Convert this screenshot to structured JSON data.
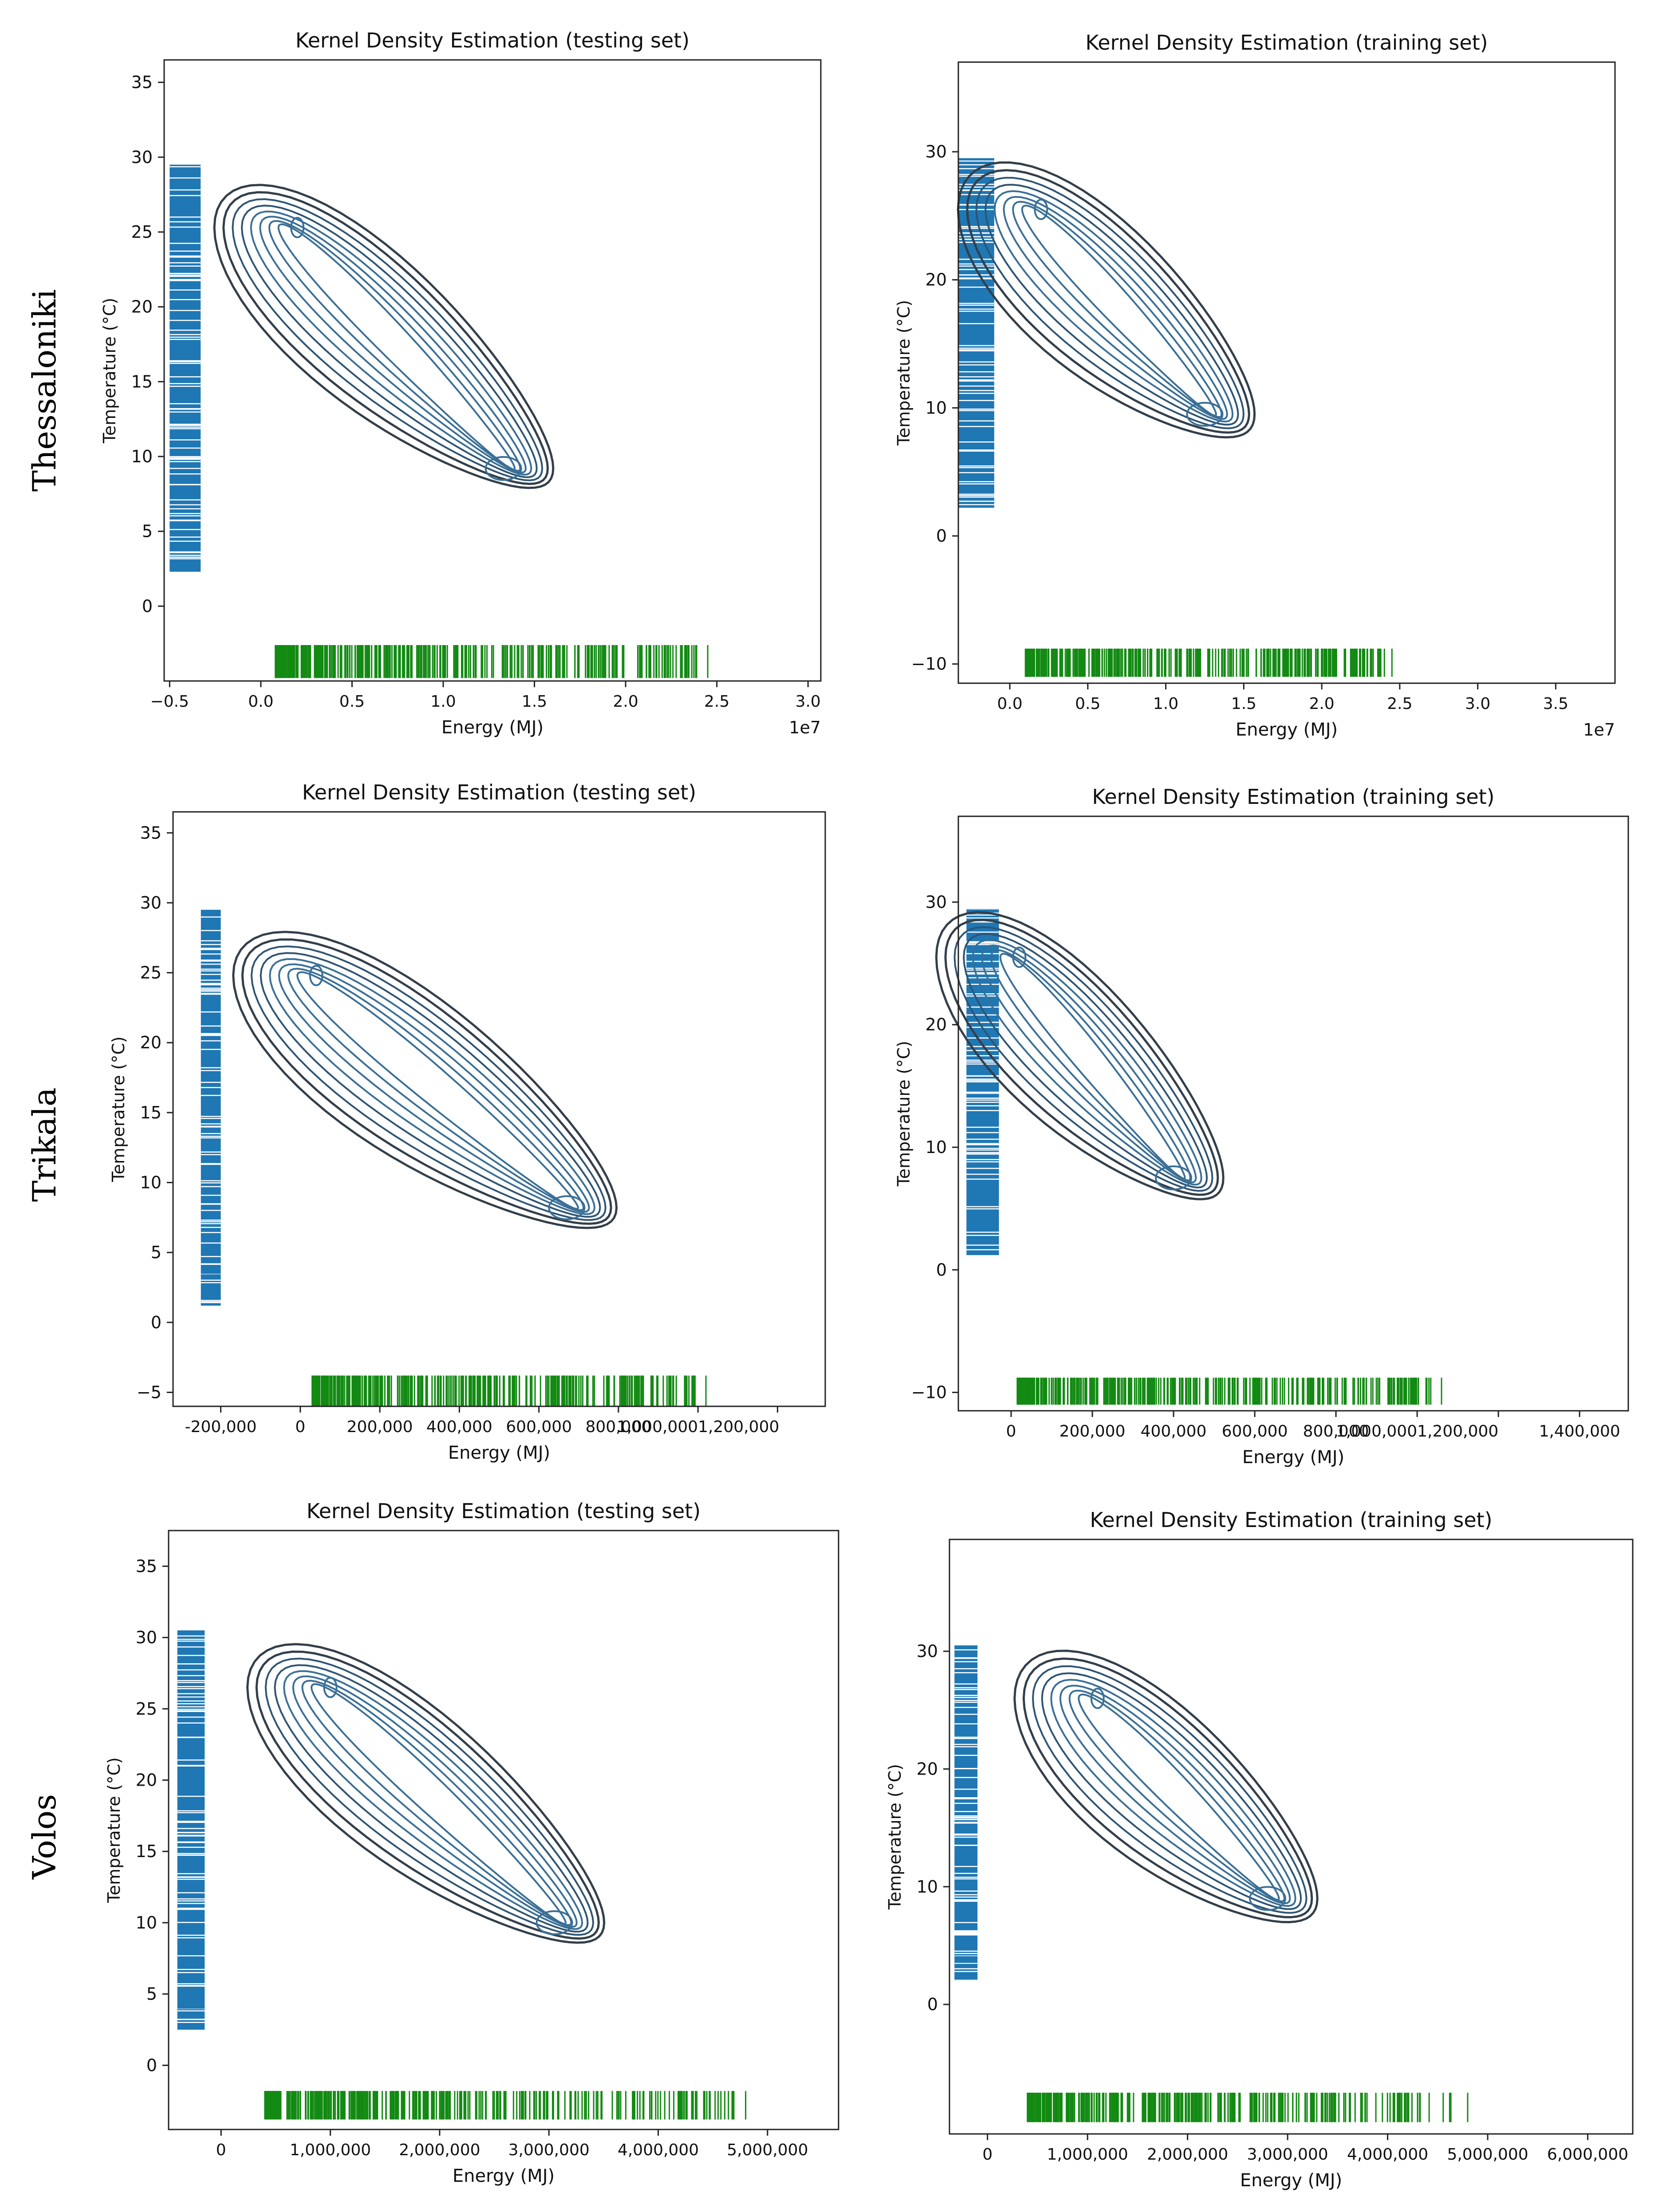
{
  "rows": [
    {
      "label": "Thessaloniki"
    },
    {
      "label": "Trikala"
    },
    {
      "label": "Volos"
    }
  ],
  "chart_data": [
    {
      "type": "kde-contour",
      "id": "thes-test",
      "title": "Kernel Density Estimation (testing set)",
      "xlabel": "Energy (MJ)",
      "ylabel": "Temperature (°C)",
      "x_offset_label": "1e7",
      "xlim": [
        -0.53,
        3.07
      ],
      "ylim": [
        -5,
        36.5
      ],
      "xticks": [
        -0.5,
        0,
        0.5,
        1.0,
        1.5,
        2.0,
        2.5,
        3.0
      ],
      "xtick_labels": [
        "−0.5",
        "0.0",
        "0.5",
        "1.0",
        "1.5",
        "2.0",
        "2.5",
        "3.0"
      ],
      "yticks": [
        0,
        5,
        10,
        15,
        20,
        25,
        30,
        35
      ],
      "ytick_labels": [
        "0",
        "5",
        "10",
        "15",
        "20",
        "25",
        "30",
        "35"
      ],
      "rug_y": {
        "x_range": [
          -0.5,
          -0.33
        ],
        "y_min": 2.3,
        "y_max": 29.5
      },
      "rug_x": {
        "y_range": [
          -4.8,
          -2.6
        ],
        "x_min": 0.08,
        "x_max": 2.45
      },
      "contour_centers": [
        [
          0.2,
          25.3
        ],
        [
          1.33,
          9.2
        ]
      ],
      "contour_levels": 8
    },
    {
      "type": "kde-contour",
      "id": "thes-train",
      "title": "Kernel Density Estimation (training set)",
      "xlabel": "Energy (MJ)",
      "ylabel": "Temperature (°C)",
      "x_offset_label": "1e7",
      "xlim": [
        -0.33,
        3.88
      ],
      "ylim": [
        -11.5,
        37
      ],
      "xticks": [
        0,
        0.5,
        1.0,
        1.5,
        2.0,
        2.5,
        3.0,
        3.5
      ],
      "xtick_labels": [
        "0.0",
        "0.5",
        "1.0",
        "1.5",
        "2.0",
        "2.5",
        "3.0",
        "3.5"
      ],
      "yticks": [
        -10,
        0,
        10,
        20,
        30
      ],
      "ytick_labels": [
        "−10",
        "0",
        "10",
        "20",
        "30"
      ],
      "rug_y": {
        "x_range": [
          -0.33,
          -0.1
        ],
        "y_min": 2.2,
        "y_max": 29.5
      },
      "rug_x": {
        "y_range": [
          -11,
          -8.8
        ],
        "x_min": 0.1,
        "x_max": 2.45
      },
      "contour_centers": [
        [
          0.2,
          25.5
        ],
        [
          1.25,
          9.5
        ]
      ],
      "contour_levels": 8
    },
    {
      "type": "kde-contour",
      "id": "trik-test",
      "title": "Kernel Density Estimation (testing set)",
      "xlabel": "Energy (MJ)",
      "ylabel": "Temperature (°C)",
      "x_offset_label": "",
      "xlim": [
        -320000,
        1320000
      ],
      "ylim": [
        -6,
        36.5
      ],
      "xticks": [
        -200000,
        0,
        200000,
        400000,
        600000,
        800000,
        1000000,
        1200000
      ],
      "xtick_labels": [
        "-200,000",
        "0",
        "200,000",
        "400,000",
        "600,000",
        "800,000",
        "1,000,0001,200,000",
        ""
      ],
      "yticks": [
        -5,
        0,
        5,
        10,
        15,
        20,
        25,
        30,
        35
      ],
      "ytick_labels": [
        "−5",
        "0",
        "5",
        "10",
        "15",
        "20",
        "25",
        "30",
        "35"
      ],
      "rug_y": {
        "x_range": [
          -250000,
          -200000
        ],
        "y_min": 1.2,
        "y_max": 29.5
      },
      "rug_x": {
        "y_range": [
          -6,
          -3.8
        ],
        "x_min": 30000,
        "x_max": 1020000
      },
      "contour_centers": [
        [
          40000,
          24.8
        ],
        [
          670000,
          8.2
        ]
      ],
      "contour_levels": 8
    },
    {
      "type": "kde-contour",
      "id": "trik-train",
      "title": "Kernel Density Estimation (training set)",
      "xlabel": "Energy (MJ)",
      "ylabel": "Temperature (°C)",
      "x_offset_label": "",
      "xlim": [
        -130000,
        1520000
      ],
      "ylim": [
        -11.5,
        37
      ],
      "xticks": [
        0,
        200000,
        400000,
        600000,
        800000,
        1000000,
        1200000,
        1400000
      ],
      "xtick_labels": [
        "0",
        "200,000",
        "400,000",
        "600,000",
        "800,000",
        "1,000,0001,200,000",
        "",
        "1,400,000"
      ],
      "yticks": [
        -10,
        0,
        10,
        20,
        30
      ],
      "ytick_labels": [
        "−10",
        "0",
        "10",
        "20",
        "30"
      ],
      "rug_y": {
        "x_range": [
          -110000,
          -30000
        ],
        "y_min": 1.2,
        "y_max": 29.5
      },
      "rug_x": {
        "y_range": [
          -11,
          -8.8
        ],
        "x_min": 15000,
        "x_max": 1060000
      },
      "contour_centers": [
        [
          20000,
          25.5
        ],
        [
          400000,
          7.5
        ]
      ],
      "contour_levels": 8
    },
    {
      "type": "kde-contour",
      "id": "volos-test",
      "title": "Kernel Density Estimation (testing set)",
      "xlabel": "Energy (MJ)",
      "ylabel": "Temperature (°C)",
      "x_offset_label": "",
      "xlim": [
        -480000,
        5650000
      ],
      "ylim": [
        -4.5,
        37.5
      ],
      "xticks": [
        0,
        1000000,
        2000000,
        3000000,
        4000000,
        5000000
      ],
      "xtick_labels": [
        "0",
        "1,000,000",
        "2,000,000",
        "3,000,000",
        "4,000,000",
        "5,000,000"
      ],
      "yticks": [
        0,
        5,
        10,
        15,
        20,
        25,
        30,
        35
      ],
      "ytick_labels": [
        "0",
        "5",
        "10",
        "15",
        "20",
        "25",
        "30",
        "35"
      ],
      "rug_y": {
        "x_range": [
          -400000,
          -150000
        ],
        "y_min": 2.5,
        "y_max": 30.5
      },
      "rug_x": {
        "y_range": [
          -3.8,
          -1.8
        ],
        "x_min": 400000,
        "x_max": 4800000
      },
      "contour_centers": [
        [
          1000000,
          26.5
        ],
        [
          3050000,
          10.0
        ]
      ],
      "contour_levels": 8
    },
    {
      "type": "kde-contour",
      "id": "volos-train",
      "title": "Kernel Density Estimation (training set)",
      "xlabel": "Energy (MJ)",
      "ylabel": "Temperature (°C)",
      "x_offset_label": "",
      "xlim": [
        -380000,
        6450000
      ],
      "ylim": [
        -11,
        39.5
      ],
      "xticks": [
        0,
        1000000,
        2000000,
        3000000,
        4000000,
        5000000,
        6000000
      ],
      "xtick_labels": [
        "0",
        "1,000,000",
        "2,000,000",
        "3,000,000",
        "4,000,000",
        "5,000,000",
        "6,000,000"
      ],
      "yticks": [
        0,
        10,
        20,
        30
      ],
      "ytick_labels": [
        "0",
        "10",
        "20",
        "30"
      ],
      "rug_y": {
        "x_range": [
          -330000,
          -100000
        ],
        "y_min": 2.0,
        "y_max": 30.5
      },
      "rug_x": {
        "y_range": [
          -10,
          -7.5
        ],
        "x_min": 400000,
        "x_max": 4800000
      },
      "contour_centers": [
        [
          1100000,
          26.0
        ],
        [
          2800000,
          9.0
        ]
      ],
      "contour_levels": 8
    }
  ]
}
